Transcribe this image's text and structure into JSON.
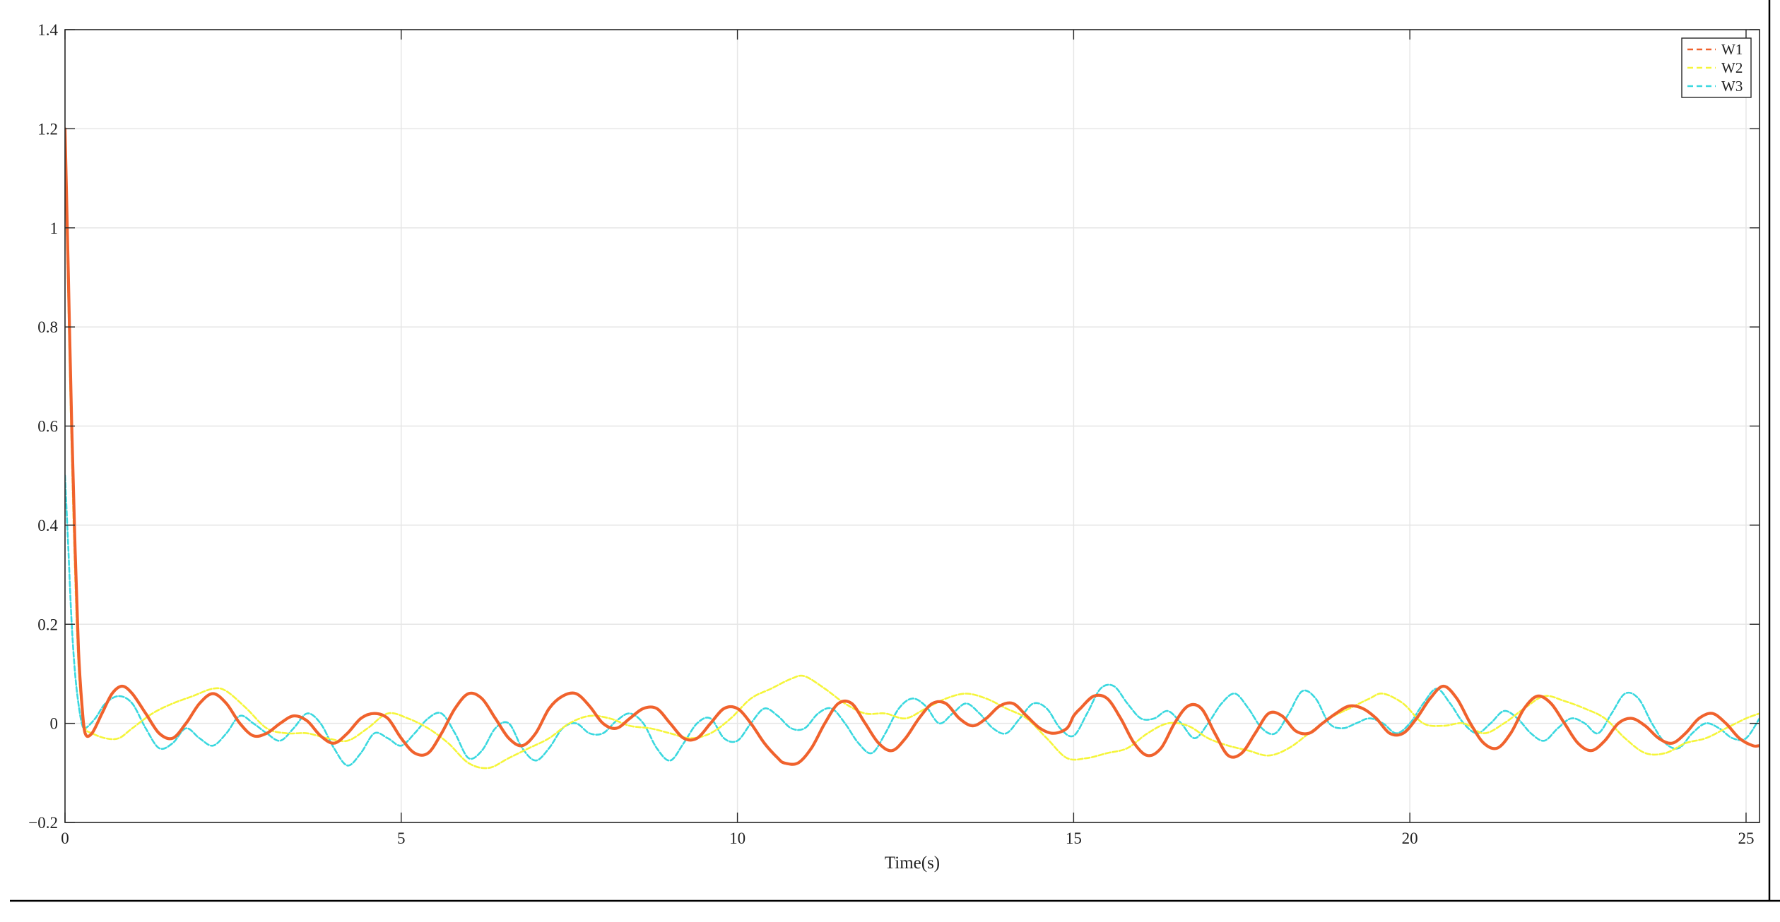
{
  "chart_data": {
    "type": "line",
    "title": "",
    "xlabel": "Time(s)",
    "ylabel": "",
    "xlim": [
      0,
      25.2
    ],
    "ylim": [
      -0.2,
      1.4
    ],
    "xticks": [
      0,
      5,
      10,
      15,
      20,
      25
    ],
    "yticks": [
      -0.2,
      0,
      0.2,
      0.4,
      0.6,
      0.8,
      1,
      1.2,
      1.4
    ],
    "xtick_labels": [
      "0",
      "5",
      "10",
      "15",
      "20",
      "25"
    ],
    "ytick_labels": [
      "−0.2",
      "0",
      "0.2",
      "0.4",
      "0.6",
      "0.8",
      "1",
      "1.2",
      "1.4"
    ],
    "grid": true,
    "legend_position": "top-right",
    "series": [
      {
        "name": "W1",
        "color": "#f0622d",
        "style": "dashed",
        "x": [
          0,
          0.05,
          0.1,
          0.15,
          0.2,
          0.25,
          0.3,
          0.4,
          0.55,
          0.7,
          0.85,
          1.0,
          1.2,
          1.4,
          1.6,
          1.8,
          2.0,
          2.2,
          2.4,
          2.6,
          2.8,
          3.0,
          3.2,
          3.4,
          3.6,
          3.8,
          4.0,
          4.2,
          4.4,
          4.6,
          4.8,
          5.0,
          5.2,
          5.4,
          5.6,
          5.8,
          6.0,
          6.2,
          6.4,
          6.6,
          6.8,
          7.0,
          7.2,
          7.4,
          7.6,
          7.8,
          8.0,
          8.2,
          8.4,
          8.6,
          8.8,
          9.0,
          9.2,
          9.4,
          9.6,
          9.8,
          10.0,
          10.2,
          10.4,
          10.6,
          10.7,
          10.9,
          11.1,
          11.3,
          11.5,
          11.7,
          11.9,
          12.1,
          12.3,
          12.5,
          12.7,
          12.9,
          13.1,
          13.3,
          13.5,
          13.7,
          13.9,
          14.1,
          14.3,
          14.5,
          14.7,
          14.9,
          15.0,
          15.1,
          15.3,
          15.5,
          15.7,
          15.9,
          16.1,
          16.3,
          16.5,
          16.7,
          16.9,
          17.1,
          17.3,
          17.5,
          17.7,
          17.9,
          18.1,
          18.3,
          18.5,
          18.7,
          18.9,
          19.1,
          19.3,
          19.5,
          19.7,
          19.9,
          20.1,
          20.3,
          20.5,
          20.7,
          20.9,
          21.1,
          21.3,
          21.5,
          21.7,
          21.9,
          22.1,
          22.3,
          22.5,
          22.7,
          22.9,
          23.1,
          23.3,
          23.5,
          23.7,
          23.9,
          24.1,
          24.3,
          24.5,
          24.7,
          24.9,
          25.1,
          25.2
        ],
        "y": [
          1.2,
          0.9,
          0.6,
          0.35,
          0.15,
          0.04,
          -0.02,
          -0.02,
          0.02,
          0.06,
          0.075,
          0.06,
          0.02,
          -0.02,
          -0.03,
          0.0,
          0.04,
          0.06,
          0.04,
          0.0,
          -0.025,
          -0.02,
          0.0,
          0.015,
          0.005,
          -0.025,
          -0.04,
          -0.02,
          0.01,
          0.02,
          0.01,
          -0.03,
          -0.06,
          -0.06,
          -0.02,
          0.03,
          0.06,
          0.05,
          0.01,
          -0.03,
          -0.045,
          -0.02,
          0.03,
          0.055,
          0.06,
          0.035,
          0.0,
          -0.01,
          0.01,
          0.03,
          0.03,
          0.0,
          -0.03,
          -0.03,
          0.0,
          0.03,
          0.03,
          0.0,
          -0.04,
          -0.07,
          -0.08,
          -0.08,
          -0.05,
          0.0,
          0.04,
          0.04,
          0.0,
          -0.04,
          -0.055,
          -0.03,
          0.01,
          0.04,
          0.04,
          0.01,
          -0.005,
          0.01,
          0.035,
          0.04,
          0.015,
          -0.01,
          -0.02,
          -0.01,
          0.015,
          0.03,
          0.055,
          0.05,
          0.01,
          -0.04,
          -0.065,
          -0.05,
          0.0,
          0.035,
          0.03,
          -0.02,
          -0.065,
          -0.06,
          -0.02,
          0.02,
          0.015,
          -0.015,
          -0.02,
          0.0,
          0.02,
          0.035,
          0.03,
          0.01,
          -0.02,
          -0.02,
          0.01,
          0.05,
          0.075,
          0.05,
          0.0,
          -0.04,
          -0.05,
          -0.02,
          0.03,
          0.055,
          0.04,
          0.0,
          -0.04,
          -0.055,
          -0.035,
          0.0,
          0.01,
          -0.005,
          -0.03,
          -0.04,
          -0.02,
          0.01,
          0.02,
          0.0,
          -0.03,
          -0.045,
          -0.045
        ]
      },
      {
        "name": "W2",
        "color": "#f5f53a",
        "style": "dashed",
        "x": [
          0,
          0.05,
          0.1,
          0.15,
          0.2,
          0.25,
          0.3,
          0.4,
          0.6,
          0.8,
          1.0,
          1.3,
          1.6,
          1.9,
          2.2,
          2.4,
          2.7,
          3.0,
          3.3,
          3.6,
          3.9,
          4.2,
          4.5,
          4.8,
          5.1,
          5.4,
          5.7,
          6.0,
          6.3,
          6.6,
          6.9,
          7.2,
          7.5,
          7.8,
          8.1,
          8.4,
          8.7,
          9.0,
          9.3,
          9.6,
          9.9,
          10.2,
          10.5,
          10.8,
          11.0,
          11.3,
          11.6,
          11.9,
          12.2,
          12.5,
          12.8,
          13.1,
          13.4,
          13.7,
          14.0,
          14.3,
          14.6,
          14.9,
          15.2,
          15.5,
          15.8,
          16.1,
          16.4,
          16.7,
          17.0,
          17.3,
          17.6,
          17.9,
          18.2,
          18.5,
          18.8,
          19.1,
          19.4,
          19.6,
          19.9,
          20.2,
          20.5,
          20.8,
          21.1,
          21.4,
          21.7,
          22.0,
          22.3,
          22.6,
          22.9,
          23.2,
          23.5,
          23.8,
          24.1,
          24.4,
          24.7,
          25.0,
          25.2
        ],
        "y": [
          1.15,
          0.85,
          0.55,
          0.3,
          0.12,
          0.03,
          -0.01,
          -0.02,
          -0.03,
          -0.03,
          -0.01,
          0.02,
          0.04,
          0.055,
          0.07,
          0.065,
          0.03,
          -0.01,
          -0.02,
          -0.02,
          -0.03,
          -0.035,
          -0.01,
          0.02,
          0.01,
          -0.01,
          -0.04,
          -0.08,
          -0.09,
          -0.07,
          -0.05,
          -0.03,
          0.0,
          0.015,
          0.01,
          -0.005,
          -0.01,
          -0.02,
          -0.03,
          -0.02,
          0.01,
          0.05,
          0.07,
          0.09,
          0.095,
          0.07,
          0.04,
          0.02,
          0.02,
          0.01,
          0.03,
          0.05,
          0.06,
          0.05,
          0.03,
          0.01,
          -0.03,
          -0.07,
          -0.07,
          -0.06,
          -0.05,
          -0.02,
          0.0,
          -0.005,
          -0.03,
          -0.045,
          -0.055,
          -0.065,
          -0.05,
          -0.02,
          0.01,
          0.03,
          0.05,
          0.06,
          0.04,
          0.0,
          -0.005,
          0.0,
          -0.02,
          0.0,
          0.03,
          0.055,
          0.045,
          0.03,
          0.01,
          -0.03,
          -0.06,
          -0.06,
          -0.04,
          -0.03,
          -0.01,
          0.01,
          0.02
        ]
      },
      {
        "name": "W3",
        "color": "#3ad8df",
        "style": "dashed",
        "x": [
          0,
          0.05,
          0.1,
          0.15,
          0.2,
          0.25,
          0.3,
          0.45,
          0.6,
          0.8,
          1.0,
          1.2,
          1.4,
          1.6,
          1.8,
          2.0,
          2.2,
          2.4,
          2.6,
          2.8,
          3.0,
          3.2,
          3.4,
          3.6,
          3.8,
          4.0,
          4.2,
          4.4,
          4.6,
          4.8,
          5.0,
          5.2,
          5.4,
          5.6,
          5.8,
          6.0,
          6.2,
          6.4,
          6.6,
          6.8,
          7.0,
          7.2,
          7.4,
          7.6,
          7.8,
          8.0,
          8.2,
          8.4,
          8.6,
          8.8,
          9.0,
          9.2,
          9.4,
          9.6,
          9.8,
          10.0,
          10.2,
          10.4,
          10.6,
          10.8,
          11.0,
          11.2,
          11.4,
          11.6,
          11.8,
          12.0,
          12.2,
          12.4,
          12.6,
          12.8,
          13.0,
          13.2,
          13.4,
          13.6,
          13.8,
          14.0,
          14.2,
          14.4,
          14.6,
          14.8,
          15.0,
          15.2,
          15.4,
          15.6,
          15.8,
          16.0,
          16.2,
          16.4,
          16.6,
          16.8,
          17.0,
          17.2,
          17.4,
          17.6,
          17.8,
          18.0,
          18.2,
          18.4,
          18.6,
          18.8,
          19.0,
          19.2,
          19.4,
          19.6,
          19.8,
          20.0,
          20.2,
          20.4,
          20.6,
          20.8,
          21.0,
          21.2,
          21.4,
          21.6,
          21.8,
          22.0,
          22.2,
          22.4,
          22.6,
          22.8,
          23.0,
          23.2,
          23.4,
          23.6,
          23.8,
          24.0,
          24.2,
          24.4,
          24.6,
          24.8,
          25.0,
          25.2
        ],
        "y": [
          0.5,
          0.35,
          0.2,
          0.1,
          0.04,
          0.0,
          -0.01,
          0.01,
          0.04,
          0.055,
          0.04,
          -0.01,
          -0.05,
          -0.04,
          -0.01,
          -0.03,
          -0.045,
          -0.02,
          0.015,
          0.0,
          -0.02,
          -0.035,
          -0.01,
          0.02,
          0.0,
          -0.05,
          -0.085,
          -0.06,
          -0.02,
          -0.03,
          -0.045,
          -0.02,
          0.01,
          0.02,
          -0.02,
          -0.07,
          -0.055,
          -0.01,
          0.0,
          -0.05,
          -0.075,
          -0.05,
          -0.01,
          0.0,
          -0.02,
          -0.02,
          0.005,
          0.02,
          0.0,
          -0.05,
          -0.075,
          -0.04,
          0.0,
          0.01,
          -0.03,
          -0.035,
          0.0,
          0.03,
          0.015,
          -0.01,
          -0.01,
          0.02,
          0.03,
          0.0,
          -0.04,
          -0.06,
          -0.02,
          0.03,
          0.05,
          0.035,
          0.0,
          0.02,
          0.04,
          0.02,
          -0.01,
          -0.02,
          0.01,
          0.04,
          0.03,
          -0.01,
          -0.025,
          0.02,
          0.07,
          0.075,
          0.04,
          0.01,
          0.01,
          0.025,
          0.0,
          -0.03,
          0.0,
          0.04,
          0.06,
          0.03,
          -0.01,
          -0.02,
          0.02,
          0.065,
          0.05,
          0.0,
          -0.01,
          0.0,
          0.01,
          0.0,
          -0.02,
          0.0,
          0.04,
          0.07,
          0.04,
          0.0,
          -0.02,
          0.0,
          0.025,
          0.01,
          -0.02,
          -0.035,
          -0.01,
          0.01,
          0.0,
          -0.02,
          0.02,
          0.06,
          0.05,
          0.0,
          -0.04,
          -0.05,
          -0.02,
          0.0,
          -0.01,
          -0.03,
          -0.03,
          0.01
        ]
      }
    ]
  }
}
